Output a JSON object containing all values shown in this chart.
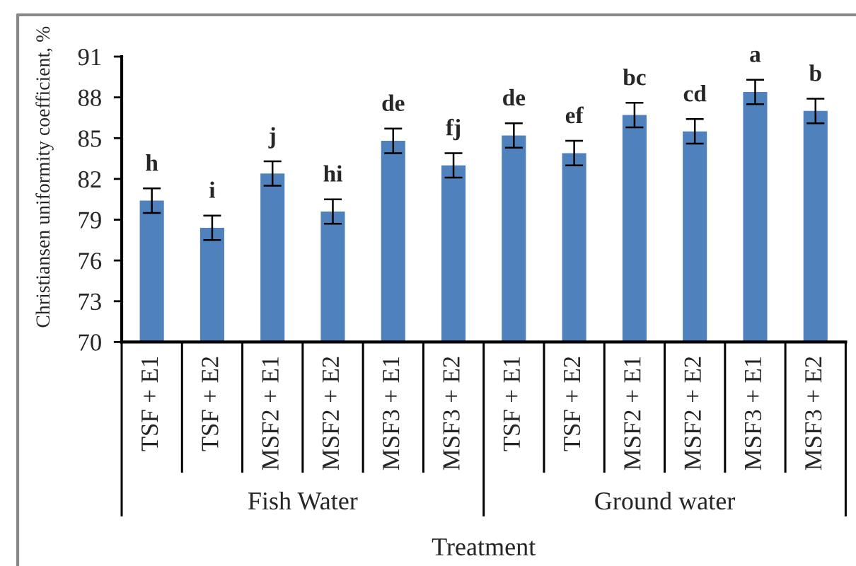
{
  "chart_data": {
    "type": "bar",
    "ylabel": "Christiansen uniformity coefficient, %",
    "xlabel": "Treatment",
    "categories": [
      "TSF + E1",
      "TSF + E2",
      "MSF2 + E1",
      "MSF2 + E2",
      "MSF3 + E1",
      "MSF3 + E2",
      "TSF + E1",
      "TSF + E2",
      "MSF2 + E1",
      "MSF2 + E2",
      "MSF3 + E1",
      "MSF3 + E2"
    ],
    "values": [
      80.4,
      78.4,
      82.4,
      79.6,
      84.8,
      83.0,
      85.2,
      83.9,
      86.7,
      85.5,
      88.4,
      87.0
    ],
    "errors": [
      0.9,
      0.9,
      0.9,
      0.9,
      0.9,
      0.9,
      0.9,
      0.9,
      0.9,
      0.9,
      0.9,
      0.9
    ],
    "value_labels": [
      "h",
      "i",
      "j",
      "hi",
      "de",
      "fj",
      "de",
      "ef",
      "bc",
      "cd",
      "a",
      "b"
    ],
    "color": "#4f81bd",
    "ylim": [
      70,
      91
    ],
    "yticks": [
      70,
      73,
      76,
      79,
      82,
      85,
      88,
      91
    ],
    "annotations": [
      "Fish Water",
      "Ground water"
    ]
  }
}
